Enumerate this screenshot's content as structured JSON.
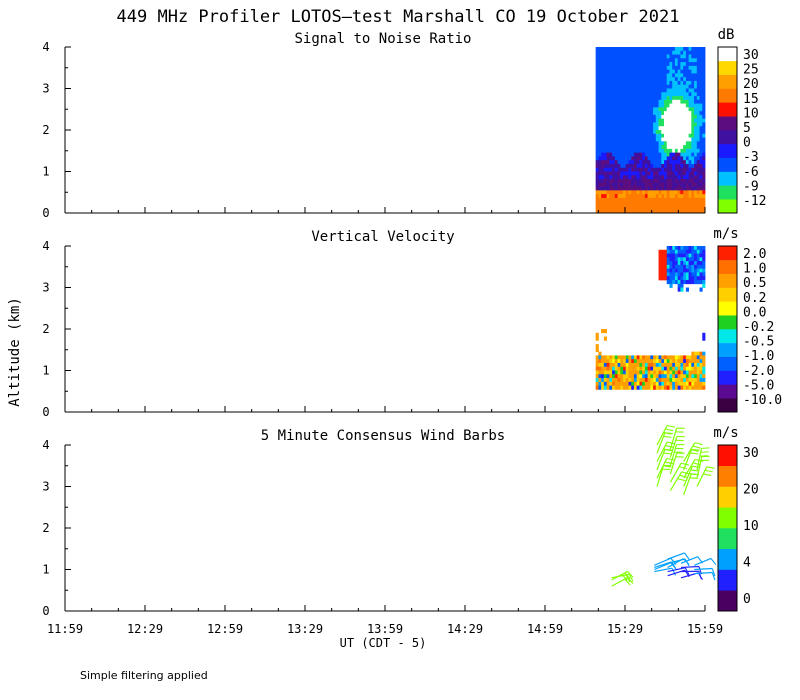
{
  "title": "449 MHz Profiler LOTOS—test Marshall CO 19 October 2021",
  "ylabel": "Altitude (km)",
  "xlabel": "UT  (CDT - 5)",
  "footnote": "Simple filtering applied",
  "x_ticks": [
    "11:59",
    "12:29",
    "12:59",
    "13:29",
    "13:59",
    "14:29",
    "14:59",
    "15:29",
    "15:59"
  ],
  "y_ticks": [
    "0",
    "1",
    "2",
    "3",
    "4"
  ],
  "colors": {
    "snr": [
      "#80ff00",
      "#20e060",
      "#00c0ff",
      "#0050ff",
      "#1a1aff",
      "#4010a0",
      "#5c0e80",
      "#ff1000",
      "#ff7a00",
      "#ffa000",
      "#ffd800",
      "#ffffff"
    ],
    "vv": [
      "#3a0040",
      "#5a0a90",
      "#2020ff",
      "#0060ff",
      "#00a0ff",
      "#00e8e8",
      "#20d020",
      "#ffff00",
      "#ffd000",
      "#ffa000",
      "#ff7000",
      "#ff2000"
    ],
    "wind": [
      "#4a0060",
      "#2020ff",
      "#00a0ff",
      "#20e060",
      "#80ff00",
      "#ffd000",
      "#ff8000",
      "#ff1000"
    ]
  },
  "chart_data": [
    {
      "type": "heatmap",
      "title": "Signal to Noise Ratio",
      "units": "dB",
      "xlabel": "UT  (CDT - 5)",
      "ylabel": "Altitude (km)",
      "xlim": [
        "11:59",
        "15:59"
      ],
      "ylim": [
        0,
        4
      ],
      "colorbar_labels": [
        "30",
        "25",
        "20",
        "15",
        "10",
        "5",
        "0",
        "-3",
        "-6",
        "-9",
        "-12"
      ],
      "data_window": [
        "15:18",
        "15:59"
      ],
      "notes": "Near-surface high SNR (15-20 dB) below 0.5 km; 0-5 dB layer 0.5-1.3 km; -3 dB background aloft; >30 dB core near 15:46, 1.3-3.0 km"
    },
    {
      "type": "heatmap",
      "title": "Vertical Velocity",
      "units": "m/s",
      "xlabel": "UT  (CDT - 5)",
      "ylabel": "Altitude (km)",
      "xlim": [
        "11:59",
        "15:59"
      ],
      "ylim": [
        0,
        4
      ],
      "colorbar_labels": [
        "2.0",
        "1.0",
        "0.5",
        "0.2",
        "0.0",
        "-0.2",
        "-0.5",
        "-1.0",
        "-2.0",
        "-5.0",
        "-10.0"
      ],
      "data_window": [
        "15:18",
        "15:59"
      ],
      "notes": "Mixed weak up/down motion 0.5-1.3 km; downdraft -1 to -2 m/s aloft 3-4 km after 15:41; updraft 2 m/s near 15:40 at 3.2-3.9 km"
    },
    {
      "type": "scatter",
      "title": "5 Minute Consensus Wind Barbs",
      "units": "m/s",
      "xlabel": "UT  (CDT - 5)",
      "ylabel": "Altitude (km)",
      "xlim": [
        "11:59",
        "15:59"
      ],
      "ylim": [
        0,
        4
      ],
      "colorbar_labels": [
        "30",
        "20",
        "10",
        "4",
        "0"
      ],
      "series": [
        {
          "name": "15:24",
          "altitude_km": [
            0.6,
            0.75,
            0.8
          ],
          "speed_ms": [
            12,
            13,
            12
          ]
        },
        {
          "name": "15:40",
          "altitude_km": [
            0.95,
            1.0,
            1.05,
            1.1
          ],
          "speed_ms": [
            4,
            4,
            6,
            4
          ]
        },
        {
          "name": "15:45",
          "altitude_km": [
            0.85,
            0.95,
            1.05,
            1.15,
            1.25
          ],
          "speed_ms": [
            2,
            3,
            4,
            4,
            6
          ]
        },
        {
          "name": "15:50",
          "altitude_km": [
            0.8,
            0.95,
            1.05,
            1.15
          ],
          "speed_ms": [
            2,
            2,
            3,
            4
          ]
        },
        {
          "name": "15:55",
          "altitude_km": [
            0.9,
            1.0,
            1.1
          ],
          "speed_ms": [
            4,
            4,
            6
          ]
        },
        {
          "name": "15:41",
          "altitude_km": [
            3.0,
            3.2,
            3.4,
            3.6,
            3.8,
            4.0
          ],
          "speed_ms": [
            12,
            13,
            12,
            13,
            12,
            13
          ]
        },
        {
          "name": "15:46",
          "altitude_km": [
            2.9,
            3.1,
            3.3,
            3.5,
            3.7,
            3.9
          ],
          "speed_ms": [
            13,
            12,
            12,
            13,
            12,
            12
          ]
        },
        {
          "name": "15:51",
          "altitude_km": [
            2.8,
            3.0,
            3.2,
            3.4,
            3.6
          ],
          "speed_ms": [
            12,
            13,
            12,
            12,
            13
          ]
        },
        {
          "name": "15:56",
          "altitude_km": [
            3.0,
            3.2,
            3.4
          ],
          "speed_ms": [
            13,
            12,
            13
          ]
        }
      ]
    }
  ]
}
